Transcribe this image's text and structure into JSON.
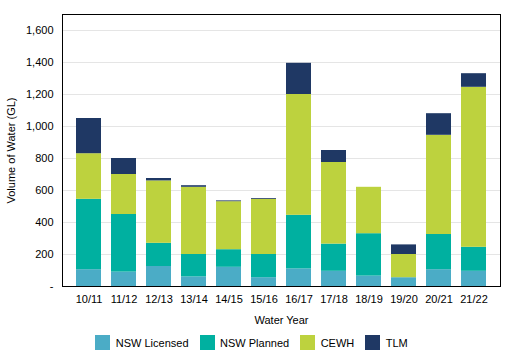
{
  "chart_data": {
    "type": "bar",
    "stacked": true,
    "xlabel": "Water Year",
    "ylabel": "Volume of Water (GL)",
    "categories": [
      "10/11",
      "11/12",
      "12/13",
      "13/14",
      "14/15",
      "15/16",
      "16/17",
      "17/18",
      "18/19",
      "19/20",
      "20/21",
      "21/22"
    ],
    "series": [
      {
        "name": "NSW Licensed",
        "color": "#4bacc6",
        "values": [
          105,
          90,
          125,
          60,
          120,
          55,
          110,
          95,
          65,
          55,
          105,
          95
        ]
      },
      {
        "name": "NSW Planned",
        "color": "#00b0a0",
        "values": [
          440,
          360,
          145,
          140,
          110,
          145,
          335,
          170,
          265,
          0,
          220,
          150
        ]
      },
      {
        "name": "CEWH",
        "color": "#bdd23e",
        "values": [
          285,
          250,
          390,
          420,
          300,
          345,
          755,
          510,
          290,
          145,
          620,
          1000
        ]
      },
      {
        "name": "TLM",
        "color": "#1f3864",
        "values": [
          220,
          100,
          15,
          10,
          5,
          5,
          195,
          75,
          0,
          60,
          135,
          85
        ]
      }
    ],
    "ylim": [
      0,
      1700
    ],
    "yticks": [
      {
        "value": 0,
        "label": "-"
      },
      200,
      400,
      600,
      800,
      {
        "value": 1000,
        "label": "1,000"
      },
      {
        "value": 1200,
        "label": "1,200"
      },
      {
        "value": 1400,
        "label": "1,400"
      },
      {
        "value": 1600,
        "label": "1,600"
      }
    ],
    "grid": true,
    "legend": "bottom"
  }
}
